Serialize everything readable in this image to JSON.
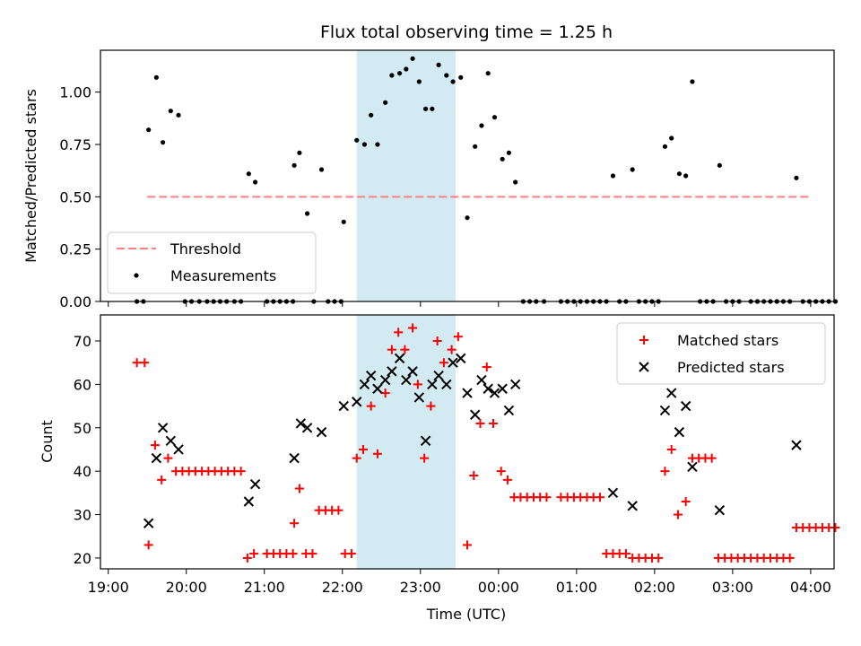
{
  "chart_data": [
    {
      "type": "scatter",
      "title": "Flux total observing time = 1.25 h",
      "ylabel": "Matched/Predicted stars",
      "xlabel": "",
      "ylim": [
        0,
        1.2
      ],
      "y_ticks": [
        "0.00",
        "0.25",
        "0.50",
        "0.75",
        "1.00"
      ],
      "x_range_hours": [
        18.9,
        28.3
      ],
      "highlight_span": {
        "start": "22:11",
        "end": "23:27",
        "color": "#add8e6"
      },
      "threshold": {
        "name": "Threshold",
        "y": 0.5,
        "x_start": "19:30",
        "x_end": "28:00",
        "color": "#ff7f7f",
        "style": "dashed"
      },
      "legend": {
        "placement": "lower-left",
        "entries": [
          "Threshold",
          "Measurements"
        ]
      },
      "series": [
        {
          "name": "Measurements",
          "color": "#000000",
          "points": [
            [
              "19:22",
              0
            ],
            [
              "19:27",
              0
            ],
            [
              "19:31",
              0.82
            ],
            [
              "19:37",
              1.07
            ],
            [
              "19:42",
              0.76
            ],
            [
              "19:48",
              0.91
            ],
            [
              "19:54",
              0.89
            ],
            [
              "19:59",
              0
            ],
            [
              "20:04",
              0
            ],
            [
              "20:10",
              0
            ],
            [
              "20:16",
              0
            ],
            [
              "20:21",
              0
            ],
            [
              "20:26",
              0
            ],
            [
              "20:31",
              0
            ],
            [
              "20:37",
              0
            ],
            [
              "20:42",
              0
            ],
            [
              "20:48",
              0.61
            ],
            [
              "20:53",
              0.57
            ],
            [
              "21:02",
              0
            ],
            [
              "21:07",
              0
            ],
            [
              "21:12",
              0
            ],
            [
              "21:17",
              0
            ],
            [
              "21:22",
              0
            ],
            [
              "21:23",
              0.65
            ],
            [
              "21:27",
              0.71
            ],
            [
              "21:33",
              0.42
            ],
            [
              "21:38",
              0
            ],
            [
              "21:44",
              0.63
            ],
            [
              "21:49",
              0
            ],
            [
              "21:54",
              0
            ],
            [
              "21:59",
              0
            ],
            [
              "22:01",
              0.38
            ],
            [
              "22:11",
              0.77
            ],
            [
              "22:17",
              0.75
            ],
            [
              "22:22",
              0.89
            ],
            [
              "22:27",
              0.75
            ],
            [
              "22:33",
              0.95
            ],
            [
              "22:38",
              1.08
            ],
            [
              "22:44",
              1.09
            ],
            [
              "22:49",
              1.11
            ],
            [
              "22:54",
              1.16
            ],
            [
              "22:59",
              1.05
            ],
            [
              "23:04",
              0.92
            ],
            [
              "23:09",
              0.92
            ],
            [
              "23:14",
              1.13
            ],
            [
              "23:20",
              1.08
            ],
            [
              "23:25",
              1.05
            ],
            [
              "23:31",
              1.07
            ],
            [
              "23:36",
              0.4
            ],
            [
              "23:42",
              0.74
            ],
            [
              "23:47",
              0.84
            ],
            [
              "23:52",
              1.09
            ],
            [
              "23:57",
              0.88
            ],
            [
              "24:03",
              0.68
            ],
            [
              "24:08",
              0.71
            ],
            [
              "24:13",
              0.57
            ],
            [
              "24:19",
              0
            ],
            [
              "24:24",
              0
            ],
            [
              "24:29",
              0
            ],
            [
              "24:35",
              0
            ],
            [
              "24:48",
              0
            ],
            [
              "24:53",
              0
            ],
            [
              "24:58",
              0
            ],
            [
              "25:03",
              0
            ],
            [
              "25:08",
              0
            ],
            [
              "25:13",
              0
            ],
            [
              "25:18",
              0
            ],
            [
              "25:23",
              0
            ],
            [
              "25:28",
              0.6
            ],
            [
              "25:33",
              0
            ],
            [
              "25:38",
              0
            ],
            [
              "25:43",
              0.63
            ],
            [
              "25:48",
              0
            ],
            [
              "25:53",
              0
            ],
            [
              "25:58",
              0
            ],
            [
              "26:03",
              0
            ],
            [
              "26:08",
              0.74
            ],
            [
              "26:13",
              0.78
            ],
            [
              "26:19",
              0.61
            ],
            [
              "26:24",
              0.6
            ],
            [
              "26:29",
              1.05
            ],
            [
              "26:35",
              0
            ],
            [
              "26:40",
              0
            ],
            [
              "26:45",
              0
            ],
            [
              "26:50",
              0.65
            ],
            [
              "26:55",
              0
            ],
            [
              "27:00",
              0
            ],
            [
              "27:05",
              0
            ],
            [
              "27:14",
              0
            ],
            [
              "27:19",
              0
            ],
            [
              "27:24",
              0
            ],
            [
              "27:29",
              0
            ],
            [
              "27:34",
              0
            ],
            [
              "27:39",
              0
            ],
            [
              "27:44",
              0
            ],
            [
              "27:49",
              0.59
            ],
            [
              "27:54",
              0
            ],
            [
              "27:59",
              0
            ],
            [
              "28:04",
              0
            ],
            [
              "28:09",
              0
            ],
            [
              "28:14",
              0
            ],
            [
              "28:19",
              0
            ]
          ]
        }
      ]
    },
    {
      "type": "scatter",
      "title": "",
      "ylabel": "Count",
      "xlabel": "Time (UTC)",
      "ylim": [
        17.5,
        76
      ],
      "y_ticks": [
        "20",
        "30",
        "40",
        "50",
        "60",
        "70"
      ],
      "x_ticks": [
        "19:00",
        "20:00",
        "21:00",
        "22:00",
        "23:00",
        "00:00",
        "01:00",
        "02:00",
        "03:00",
        "04:00"
      ],
      "x_range_hours": [
        18.9,
        28.3
      ],
      "highlight_span": {
        "start": "22:11",
        "end": "23:27",
        "color": "#add8e6"
      },
      "legend": {
        "placement": "top-right",
        "entries": [
          "Matched stars",
          "Predicted stars"
        ]
      },
      "series": [
        {
          "name": "Matched stars",
          "marker": "plus",
          "color": "#ff0000",
          "points": [
            [
              "19:22",
              65
            ],
            [
              "19:28",
              65
            ],
            [
              "19:31",
              23
            ],
            [
              "19:36",
              46
            ],
            [
              "19:41",
              38
            ],
            [
              "19:46",
              43
            ],
            [
              "19:52",
              40
            ],
            [
              "19:57",
              40
            ],
            [
              "20:02",
              40
            ],
            [
              "20:07",
              40
            ],
            [
              "20:12",
              40
            ],
            [
              "20:17",
              40
            ],
            [
              "20:22",
              40
            ],
            [
              "20:27",
              40
            ],
            [
              "20:32",
              40
            ],
            [
              "20:37",
              40
            ],
            [
              "20:42",
              40
            ],
            [
              "20:47",
              20
            ],
            [
              "20:52",
              21
            ],
            [
              "21:02",
              21
            ],
            [
              "21:07",
              21
            ],
            [
              "21:12",
              21
            ],
            [
              "21:17",
              21
            ],
            [
              "21:22",
              21
            ],
            [
              "21:23",
              28
            ],
            [
              "21:27",
              36
            ],
            [
              "21:32",
              21
            ],
            [
              "21:37",
              21
            ],
            [
              "21:42",
              31
            ],
            [
              "21:47",
              31
            ],
            [
              "21:52",
              31
            ],
            [
              "21:57",
              31
            ],
            [
              "22:02",
              21
            ],
            [
              "22:07",
              21
            ],
            [
              "22:11",
              43
            ],
            [
              "22:16",
              45
            ],
            [
              "22:22",
              55
            ],
            [
              "22:27",
              44
            ],
            [
              "22:33",
              58
            ],
            [
              "22:38",
              68
            ],
            [
              "22:43",
              72
            ],
            [
              "22:48",
              68
            ],
            [
              "22:54",
              73
            ],
            [
              "22:58",
              60
            ],
            [
              "23:03",
              43
            ],
            [
              "23:08",
              55
            ],
            [
              "23:13",
              70
            ],
            [
              "23:18",
              65
            ],
            [
              "23:24",
              68
            ],
            [
              "23:29",
              71
            ],
            [
              "23:36",
              23
            ],
            [
              "23:41",
              39
            ],
            [
              "23:46",
              51
            ],
            [
              "23:51",
              64
            ],
            [
              "23:56",
              51
            ],
            [
              "24:02",
              40
            ],
            [
              "24:07",
              38
            ],
            [
              "24:12",
              34
            ],
            [
              "24:17",
              34
            ],
            [
              "24:22",
              34
            ],
            [
              "24:27",
              34
            ],
            [
              "24:32",
              34
            ],
            [
              "24:37",
              34
            ],
            [
              "24:48",
              34
            ],
            [
              "24:53",
              34
            ],
            [
              "24:58",
              34
            ],
            [
              "25:03",
              34
            ],
            [
              "25:08",
              34
            ],
            [
              "25:13",
              34
            ],
            [
              "25:18",
              34
            ],
            [
              "25:23",
              21
            ],
            [
              "25:28",
              21
            ],
            [
              "25:33",
              21
            ],
            [
              "25:38",
              21
            ],
            [
              "25:43",
              20
            ],
            [
              "25:48",
              20
            ],
            [
              "25:53",
              20
            ],
            [
              "25:58",
              20
            ],
            [
              "26:03",
              20
            ],
            [
              "26:08",
              40
            ],
            [
              "26:13",
              45
            ],
            [
              "26:18",
              30
            ],
            [
              "26:24",
              33
            ],
            [
              "26:29",
              43
            ],
            [
              "26:34",
              43
            ],
            [
              "26:39",
              43
            ],
            [
              "26:44",
              43
            ],
            [
              "26:49",
              20
            ],
            [
              "26:54",
              20
            ],
            [
              "26:59",
              20
            ],
            [
              "27:04",
              20
            ],
            [
              "27:09",
              20
            ],
            [
              "27:14",
              20
            ],
            [
              "27:19",
              20
            ],
            [
              "27:24",
              20
            ],
            [
              "27:29",
              20
            ],
            [
              "27:34",
              20
            ],
            [
              "27:39",
              20
            ],
            [
              "27:44",
              20
            ],
            [
              "27:49",
              27
            ],
            [
              "27:54",
              27
            ],
            [
              "27:59",
              27
            ],
            [
              "28:04",
              27
            ],
            [
              "28:09",
              27
            ],
            [
              "28:14",
              27
            ],
            [
              "28:19",
              27
            ]
          ]
        },
        {
          "name": "Predicted stars",
          "marker": "x",
          "color": "#000000",
          "points": [
            [
              "19:31",
              28
            ],
            [
              "19:37",
              43
            ],
            [
              "19:42",
              50
            ],
            [
              "19:48",
              47
            ],
            [
              "19:54",
              45
            ],
            [
              "20:48",
              33
            ],
            [
              "20:53",
              37
            ],
            [
              "21:23",
              43
            ],
            [
              "21:28",
              51
            ],
            [
              "21:33",
              50
            ],
            [
              "21:44",
              49
            ],
            [
              "22:01",
              55
            ],
            [
              "22:11",
              56
            ],
            [
              "22:17",
              60
            ],
            [
              "22:22",
              62
            ],
            [
              "22:27",
              59
            ],
            [
              "22:33",
              61
            ],
            [
              "22:38",
              63
            ],
            [
              "22:44",
              66
            ],
            [
              "22:49",
              61
            ],
            [
              "22:54",
              63
            ],
            [
              "22:59",
              57
            ],
            [
              "23:04",
              47
            ],
            [
              "23:09",
              60
            ],
            [
              "23:14",
              62
            ],
            [
              "23:20",
              60
            ],
            [
              "23:25",
              65
            ],
            [
              "23:31",
              66
            ],
            [
              "23:36",
              58
            ],
            [
              "23:42",
              53
            ],
            [
              "23:47",
              61
            ],
            [
              "23:52",
              59
            ],
            [
              "23:57",
              58
            ],
            [
              "24:03",
              59
            ],
            [
              "24:08",
              54
            ],
            [
              "24:13",
              60
            ],
            [
              "25:28",
              35
            ],
            [
              "25:43",
              32
            ],
            [
              "26:08",
              54
            ],
            [
              "26:13",
              58
            ],
            [
              "26:19",
              49
            ],
            [
              "26:24",
              55
            ],
            [
              "26:29",
              41
            ],
            [
              "26:50",
              31
            ],
            [
              "27:49",
              46
            ]
          ]
        }
      ]
    }
  ]
}
